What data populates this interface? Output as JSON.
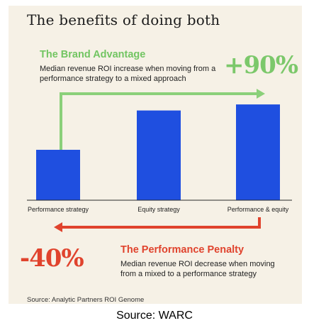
{
  "title": "The benefits of doing both",
  "brand_advantage": {
    "title": "The Brand Advantage",
    "subtitle": "Median revenue ROI increase when moving from a performance strategy to a mixed approach",
    "value": "+90%"
  },
  "performance_penalty": {
    "title": "The Performance Penalty",
    "subtitle": "Median revenue ROI decrease when moving from a mixed to a performance strategy",
    "value": "-40%"
  },
  "source": "Source: Analytic Partners ROI Genome",
  "footer": "Source: WARC",
  "colors": {
    "bar": "#1f4fe0",
    "green": "#7cc86b",
    "red": "#e0432d",
    "background": "#f6f1e6"
  },
  "chart_data": {
    "type": "bar",
    "categories": [
      "Performance strategy",
      "Equity strategy",
      "Performance & equity"
    ],
    "values": [
      1.0,
      1.78,
      1.9
    ],
    "ylim": [
      0,
      2.0
    ],
    "grid": false
  }
}
